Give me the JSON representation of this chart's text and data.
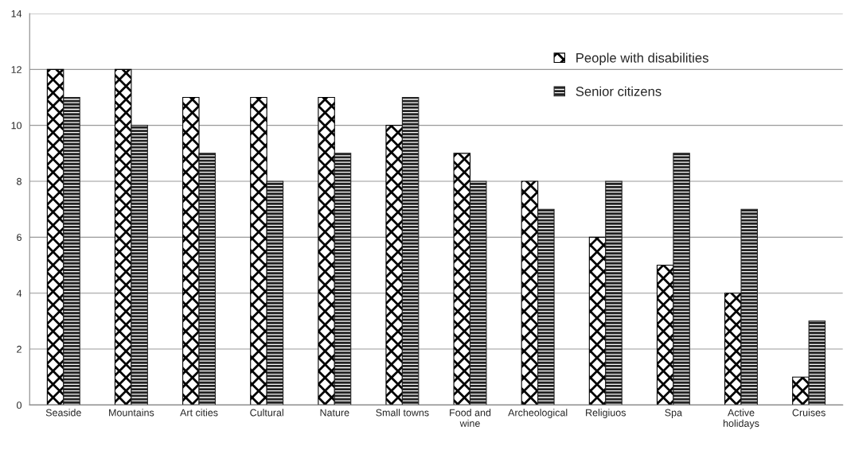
{
  "chart_data": {
    "type": "bar",
    "categories": [
      "Seaside",
      "Mountains",
      "Art cities",
      "Cultural",
      "Nature",
      "Small towns",
      "Food and\nwine",
      "Archeological",
      "Religiuos",
      "Spa",
      "Active\nholidays",
      "Cruises"
    ],
    "series": [
      {
        "name": "People with disabilities",
        "color": "#000000",
        "values": [
          12,
          12,
          11,
          11,
          11,
          10,
          9,
          8,
          6,
          5,
          4,
          1
        ]
      },
      {
        "name": "Senior citizens",
        "color": "#222222",
        "values": [
          11,
          10,
          9,
          8,
          9,
          11,
          8,
          7,
          8,
          9,
          7,
          3
        ]
      }
    ],
    "ylim": [
      0,
      14
    ],
    "yticks": [
      0,
      2,
      4,
      6,
      8,
      10,
      12,
      14
    ],
    "grid": "y",
    "legend": "top right"
  }
}
